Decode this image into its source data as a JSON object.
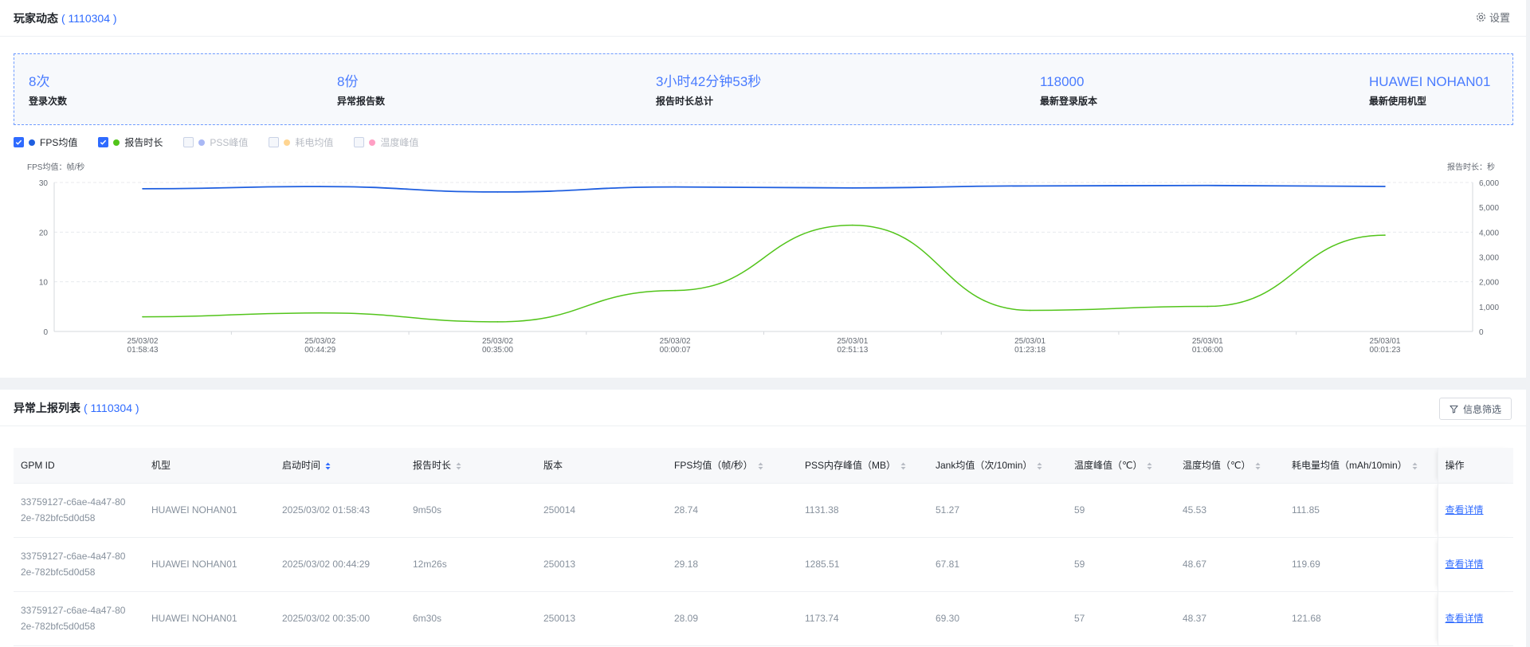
{
  "header": {
    "title": "玩家动态",
    "id": "( 1110304 )",
    "settings_label": "设置"
  },
  "stats": [
    {
      "value": "8次",
      "label": "登录次数"
    },
    {
      "value": "8份",
      "label": "异常报告数"
    },
    {
      "value": "3小时42分钟53秒",
      "label": "报告时长总计"
    },
    {
      "value": "118000",
      "label": "最新登录版本"
    },
    {
      "value": "HUAWEI NOHAN01",
      "label": "最新使用机型"
    }
  ],
  "legend": [
    {
      "label": "FPS均值",
      "checked": true,
      "color": "#1f5fe0"
    },
    {
      "label": "报告时长",
      "checked": true,
      "color": "#52c41a"
    },
    {
      "label": "PSS峰值",
      "checked": false,
      "color": "#a9b8f5"
    },
    {
      "label": "耗电均值",
      "checked": false,
      "color": "#ffd591"
    },
    {
      "label": "温度峰值",
      "checked": false,
      "color": "#ff9fc4"
    }
  ],
  "chart_data": {
    "type": "line",
    "left_axis_title": "FPS均值：帧/秒",
    "right_axis_title": "报告时长：秒",
    "left_ticks": [
      "30",
      "20",
      "10",
      "0"
    ],
    "right_ticks": [
      "6,000",
      "5,000",
      "4,000",
      "3,000",
      "2,000",
      "1,000",
      "0"
    ],
    "ylim_left": [
      0,
      30
    ],
    "ylim_right": [
      0,
      6000
    ],
    "x": [
      [
        "25/03/02",
        "01:58:43"
      ],
      [
        "25/03/02",
        "00:44:29"
      ],
      [
        "25/03/02",
        "00:35:00"
      ],
      [
        "25/03/02",
        "00:00:07"
      ],
      [
        "25/03/01",
        "02:51:13"
      ],
      [
        "25/03/01",
        "01:23:18"
      ],
      [
        "25/03/01",
        "01:06:00"
      ],
      [
        "25/03/01",
        "00:01:23"
      ]
    ],
    "series": [
      {
        "name": "FPS均值",
        "axis": "left",
        "color": "#1f5fe0",
        "values": [
          28.74,
          29.18,
          28.09,
          29.1,
          28.9,
          29.3,
          29.4,
          29.2
        ]
      },
      {
        "name": "报告时长",
        "axis": "right",
        "color": "#52c41a",
        "values": [
          590,
          746,
          390,
          1650,
          4280,
          850,
          1010,
          3880
        ]
      }
    ]
  },
  "table_section": {
    "title": "异常上报列表",
    "id": "( 1110304 )",
    "filter_label": "信息筛选",
    "columns": [
      "GPM ID",
      "机型",
      "启动时间",
      "报告时长",
      "版本",
      "FPS均值（帧/秒）",
      "PSS内存峰值（MB）",
      "Jank均值（次/10min）",
      "温度峰值（℃）",
      "温度均值（℃）",
      "耗电量均值（mAh/10min）",
      "操作"
    ],
    "rows": [
      {
        "gpm_id": "33759127-c6ae-4a47-802e-782bfc5d0d58",
        "model": "HUAWEI NOHAN01",
        "start": "2025/03/02 01:58:43",
        "duration": "9m50s",
        "version": "250014",
        "fps": "28.74",
        "pss": "1131.38",
        "jank": "51.27",
        "temp_peak": "59",
        "temp_avg": "45.53",
        "power": "111.85",
        "action": "查看详情"
      },
      {
        "gpm_id": "33759127-c6ae-4a47-802e-782bfc5d0d58",
        "model": "HUAWEI NOHAN01",
        "start": "2025/03/02 00:44:29",
        "duration": "12m26s",
        "version": "250013",
        "fps": "29.18",
        "pss": "1285.51",
        "jank": "67.81",
        "temp_peak": "59",
        "temp_avg": "48.67",
        "power": "119.69",
        "action": "查看详情"
      },
      {
        "gpm_id": "33759127-c6ae-4a47-802e-782bfc5d0d58",
        "model": "HUAWEI NOHAN01",
        "start": "2025/03/02 00:35:00",
        "duration": "6m30s",
        "version": "250013",
        "fps": "28.09",
        "pss": "1173.74",
        "jank": "69.30",
        "temp_peak": "57",
        "temp_avg": "48.37",
        "power": "121.68",
        "action": "查看详情"
      }
    ]
  }
}
